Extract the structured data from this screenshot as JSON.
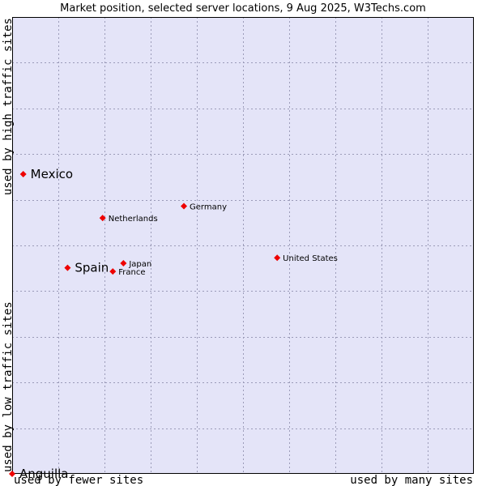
{
  "chart_data": {
    "type": "scatter",
    "title": "Market position, selected server locations, 9 Aug 2025, W3Techs.com",
    "xlabel_left": "used by fewer sites",
    "xlabel_right": "used by many sites",
    "ylabel_bottom": "used by low traffic sites",
    "ylabel_top": "used by high traffic sites",
    "xlim": [
      0,
      100
    ],
    "ylim": [
      0,
      100
    ],
    "grid": true,
    "points": [
      {
        "label": "Mexico",
        "x": 2.4,
        "y": 65.6,
        "emphasis": true
      },
      {
        "label": "Netherlands",
        "x": 19.6,
        "y": 56.0,
        "emphasis": false
      },
      {
        "label": "Germany",
        "x": 37.2,
        "y": 58.6,
        "emphasis": false
      },
      {
        "label": "United States",
        "x": 57.4,
        "y": 47.3,
        "emphasis": false
      },
      {
        "label": "Japan",
        "x": 24.1,
        "y": 46.1,
        "emphasis": false
      },
      {
        "label": "France",
        "x": 21.8,
        "y": 44.3,
        "emphasis": false
      },
      {
        "label": "Spain",
        "x": 12.0,
        "y": 45.1,
        "emphasis": true
      },
      {
        "label": "Anguilla",
        "x": 0,
        "y": 0,
        "emphasis": true
      }
    ]
  },
  "colors": {
    "plot_bg": "#e4e4f8",
    "point": "#ee0000",
    "frame": "#000000"
  }
}
